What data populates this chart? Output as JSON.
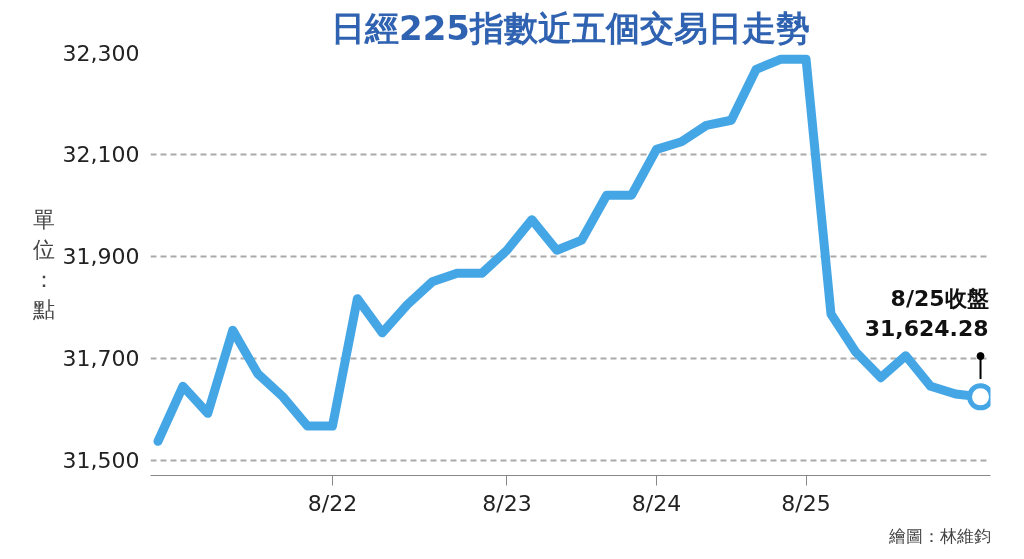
{
  "chart_data": {
    "type": "line",
    "title": "日經225指數近五個交易日走勢",
    "ylabel": "單位：點",
    "categories": [
      null,
      null,
      null,
      null,
      null,
      null,
      null,
      "8/22",
      null,
      null,
      null,
      null,
      null,
      null,
      "8/23",
      null,
      null,
      null,
      null,
      null,
      "8/24",
      null,
      null,
      null,
      null,
      null,
      "8/25",
      null,
      null,
      null,
      null,
      null,
      null,
      null
    ],
    "series": [
      {
        "color": "#45a6e6",
        "values": [
          31537,
          31645,
          31592,
          31755,
          31670,
          31625,
          31567,
          31567,
          31817,
          31750,
          31805,
          31850,
          31867,
          31867,
          31912,
          31972,
          31912,
          31932,
          32020,
          32020,
          32110,
          32125,
          32157,
          32167,
          32267,
          32287,
          32287,
          31787,
          31712,
          31662,
          31705,
          31645,
          31630,
          31624.28
        ]
      }
    ],
    "ylim": [
      31470,
      32300
    ],
    "yticks": [
      {
        "value": 31500,
        "label": "31,500"
      },
      {
        "value": 31700,
        "label": "31,700"
      },
      {
        "value": 31900,
        "label": "31,900"
      },
      {
        "value": 32100,
        "label": "32,100"
      },
      {
        "value": 32300,
        "label": "32,300"
      }
    ],
    "grid": "y",
    "line_style": "solid",
    "annotations": [
      "8/25收盤\n31,624.28",
      "繪圖：林維鈞"
    ]
  }
}
